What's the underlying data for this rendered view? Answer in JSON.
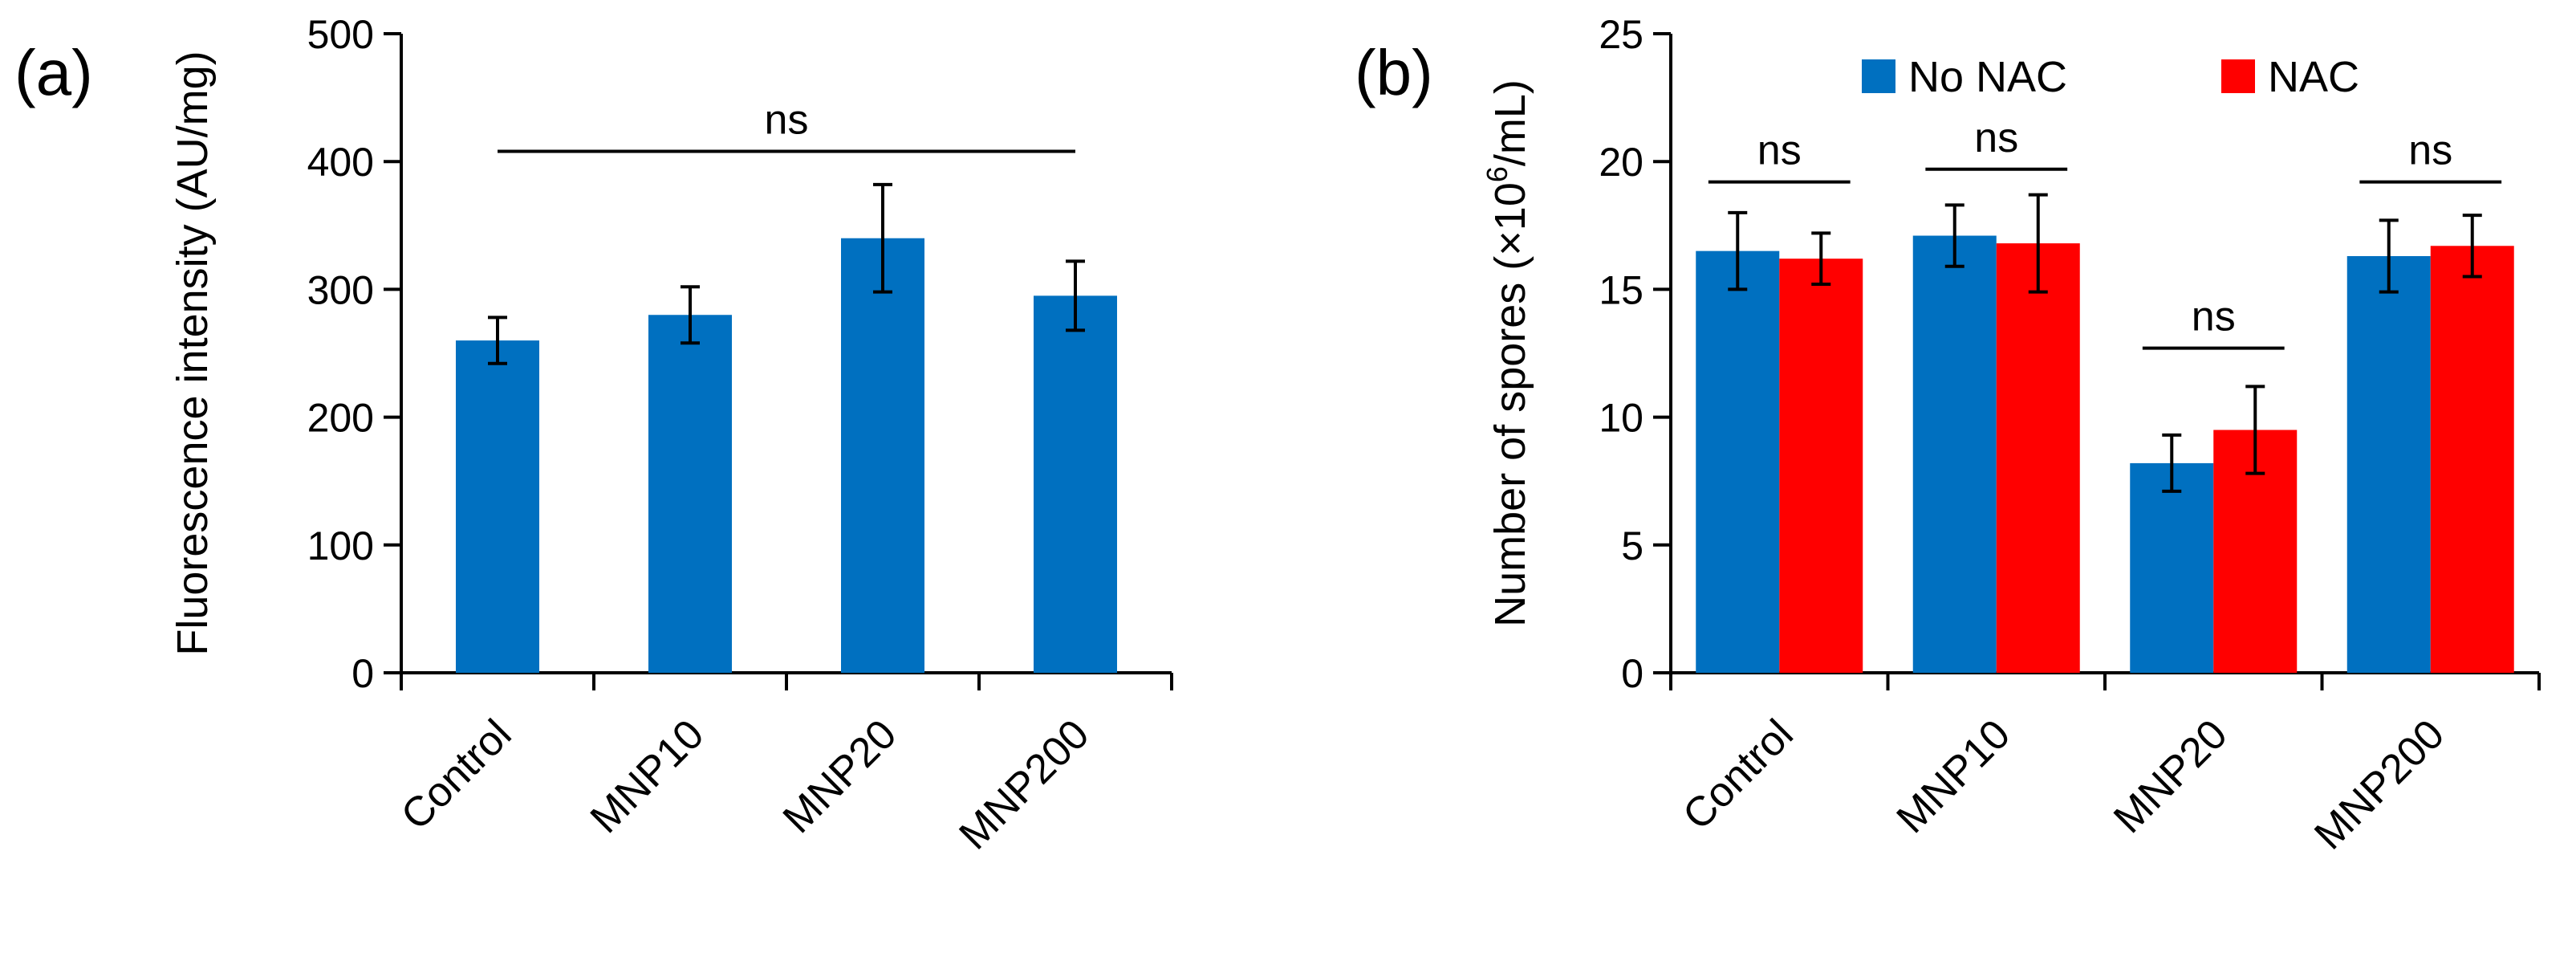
{
  "colors": {
    "blue": "#0070C0",
    "red": "#FF0000",
    "axis": "#000000"
  },
  "chart_data": [
    {
      "type": "bar",
      "panel_label": "(a)",
      "title": "",
      "xlabel": "",
      "ylabel": "Fluorescence intensity (AU/mg)",
      "ylim": [
        0,
        500
      ],
      "yticks": [
        0,
        100,
        200,
        300,
        400,
        500
      ],
      "yticks_text": [
        "0",
        "100",
        "200",
        "300",
        "400",
        "500"
      ],
      "categories": [
        "Control",
        "MNP10",
        "MNP20",
        "MNP200"
      ],
      "series": [
        {
          "name": "",
          "color": "#0070C0",
          "values": [
            260,
            280,
            340,
            295
          ],
          "errors": [
            18,
            22,
            42,
            27
          ]
        }
      ],
      "annotations": [
        {
          "text": "ns",
          "type": "bracket-all",
          "span": [
            0,
            3
          ],
          "y_value": 408
        }
      ]
    },
    {
      "type": "bar",
      "panel_label": "(b)",
      "title": "",
      "xlabel": "",
      "ylabel_prefix": "Number of spores (×10",
      "ylabel_exp": "6",
      "ylabel_suffix": "/mL)",
      "ylim": [
        0,
        25
      ],
      "yticks": [
        0,
        5,
        10,
        15,
        20,
        25
      ],
      "yticks_text": [
        "0",
        "5",
        "10",
        "15",
        "20",
        "25"
      ],
      "categories": [
        "Control",
        "MNP10",
        "MNP20",
        "MNP200"
      ],
      "legend": {
        "position": "top",
        "entries": [
          "No NAC",
          "NAC"
        ]
      },
      "series": [
        {
          "name": "No NAC",
          "color": "#0070C0",
          "values": [
            16.5,
            17.1,
            8.2,
            16.3
          ],
          "errors": [
            1.5,
            1.2,
            1.1,
            1.4
          ]
        },
        {
          "name": "NAC",
          "color": "#FF0000",
          "values": [
            16.2,
            16.8,
            9.5,
            16.7
          ],
          "errors": [
            1.0,
            1.9,
            1.7,
            1.2
          ]
        }
      ],
      "annotations": [
        {
          "text": "ns",
          "category": 0,
          "y_value": 19.2
        },
        {
          "text": "ns",
          "category": 1,
          "y_value": 19.7
        },
        {
          "text": "ns",
          "category": 2,
          "y_value": 12.7
        },
        {
          "text": "ns",
          "category": 3,
          "y_value": 19.2
        }
      ]
    }
  ]
}
